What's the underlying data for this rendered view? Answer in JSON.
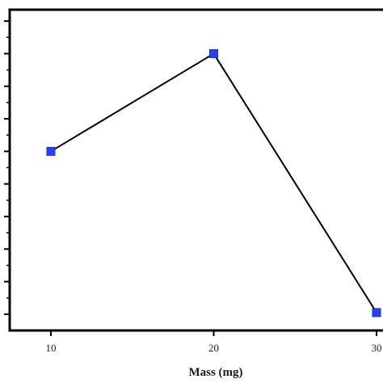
{
  "chart_data": {
    "type": "line",
    "title": "",
    "xlabel": "Mass (mg)",
    "ylabel": "",
    "x": [
      10,
      20,
      30
    ],
    "series": [
      {
        "values": [
          0.55,
          0.85,
          0.055
        ]
      }
    ],
    "x_ticks": [
      10,
      20,
      30
    ],
    "x_tick_labels": [
      "10",
      "20",
      "30"
    ],
    "xlim": [
      7.5,
      30
    ],
    "ylim": [
      0,
      0.985
    ],
    "y_major_ticks": [
      0.05,
      0.15,
      0.25,
      0.35,
      0.45,
      0.55,
      0.65,
      0.75,
      0.85,
      0.95
    ],
    "y_minor_ticks": [
      0.1,
      0.2,
      0.3,
      0.4,
      0.5,
      0.6,
      0.7,
      0.8,
      0.9
    ],
    "grid": false,
    "legend": "none",
    "colors": {
      "marker_fill": "#2344f2",
      "marker_stroke": "#1a2fc0",
      "line": "#000000",
      "axis": "#000000"
    }
  }
}
